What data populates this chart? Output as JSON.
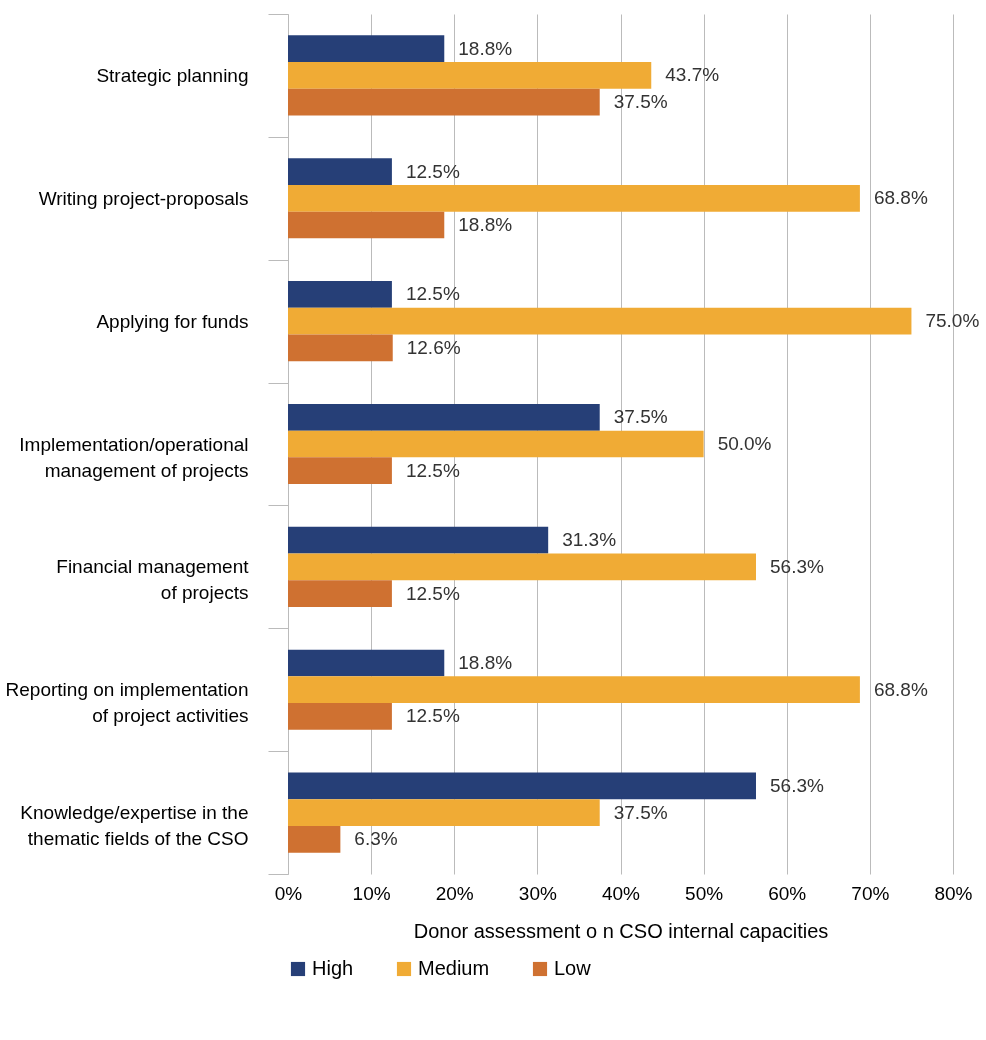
{
  "chart_data": {
    "type": "bar",
    "orientation": "horizontal",
    "xlabel": "Donor assessment o n CSO internal capacities",
    "categories": [
      "Strategic planning",
      "Writing project-proposals",
      "Applying for funds",
      "Implementation/operational management of projects",
      "Financial management of projects",
      "Reporting on implementation of project activities",
      "Knowledge/expertise in the thematic fields of the CSO"
    ],
    "series": [
      {
        "name": "High",
        "color": "#263f77",
        "values": [
          18.8,
          12.5,
          12.5,
          37.5,
          31.3,
          18.8,
          56.3
        ],
        "value_labels": [
          "18.8%",
          "12.5%",
          "12.5%",
          "37.5%",
          "31.3%",
          "18.8%",
          "56.3%"
        ]
      },
      {
        "name": "Medium",
        "color": "#f0ab35",
        "values": [
          43.7,
          68.8,
          75.0,
          50.0,
          56.3,
          68.8,
          37.5
        ],
        "value_labels": [
          "43.7%",
          "68.8%",
          "75.0%",
          "50.0%",
          "56.3%",
          "68.8%",
          "37.5%"
        ]
      },
      {
        "name": "Low",
        "color": "#cf7131",
        "values": [
          37.5,
          18.8,
          12.6,
          12.5,
          12.5,
          12.5,
          6.3
        ],
        "value_labels": [
          "37.5%",
          "18.8%",
          "12.6%",
          "12.5%",
          "12.5%",
          "12.5%",
          "6.3%"
        ]
      }
    ],
    "xlim": [
      0,
      80
    ],
    "xticks": [
      {
        "value": 0,
        "label": "0%"
      },
      {
        "value": 10,
        "label": "10%"
      },
      {
        "value": 20,
        "label": "20%"
      },
      {
        "value": 30,
        "label": "30%"
      },
      {
        "value": 40,
        "label": "40%"
      },
      {
        "value": 50,
        "label": "50%"
      },
      {
        "value": 60,
        "label": "60%"
      },
      {
        "value": 70,
        "label": "70%"
      },
      {
        "value": 80,
        "label": "80%"
      }
    ],
    "grid": "x",
    "legend": "bottom"
  }
}
